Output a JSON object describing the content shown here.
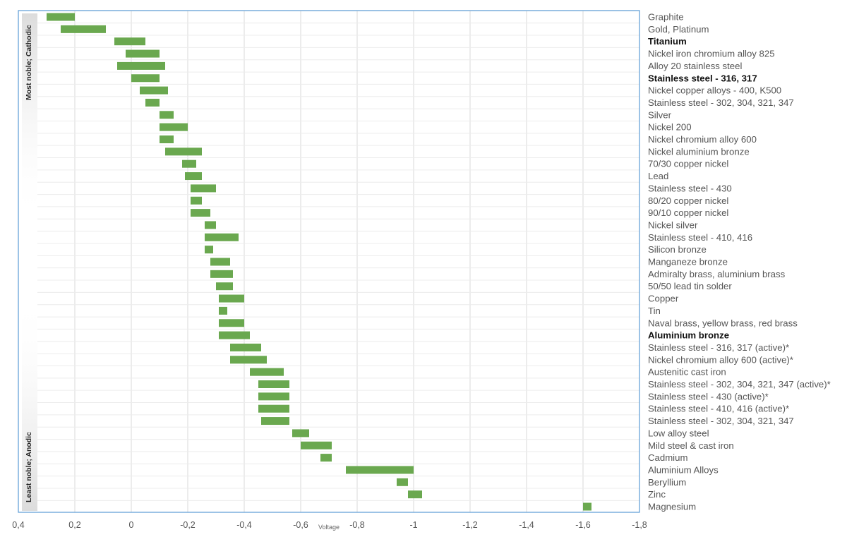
{
  "chart_data": {
    "type": "bar",
    "orientation": "horizontal-range",
    "xlabel": "Voltage",
    "xlim": [
      0.4,
      -1.8
    ],
    "x_ticks": [
      "0,4",
      "0,2",
      "0",
      "-0,2",
      "-0,4",
      "-0,6",
      "-0,8",
      "-1",
      "-1,2",
      "-1,4",
      "-1,6",
      "-1,8"
    ],
    "grid": true,
    "bar_color": "#6aa84f",
    "frame_color": "#5b9bd5",
    "side_labels": {
      "top": "Most noble; Cathodic",
      "bottom": "Least noble; Anodic"
    },
    "series": [
      {
        "label": "Graphite",
        "bold": false,
        "range": [
          0.3,
          0.2
        ]
      },
      {
        "label": "Gold, Platinum",
        "bold": false,
        "range": [
          0.25,
          0.09
        ]
      },
      {
        "label": "Titanium",
        "bold": true,
        "range": [
          0.06,
          -0.05
        ]
      },
      {
        "label": "Nickel iron chromium alloy 825",
        "bold": false,
        "range": [
          0.02,
          -0.1
        ]
      },
      {
        "label": "Alloy 20 stainless steel",
        "bold": false,
        "range": [
          0.05,
          -0.12
        ]
      },
      {
        "label": "Stainless steel - 316, 317",
        "bold": true,
        "range": [
          0.0,
          -0.1
        ]
      },
      {
        "label": "Nickel copper alloys - 400, K500",
        "bold": false,
        "range": [
          -0.03,
          -0.13
        ]
      },
      {
        "label": "Stainless steel - 302, 304, 321, 347",
        "bold": false,
        "range": [
          -0.05,
          -0.1
        ]
      },
      {
        "label": "Silver",
        "bold": false,
        "range": [
          -0.1,
          -0.15
        ]
      },
      {
        "label": "Nickel 200",
        "bold": false,
        "range": [
          -0.1,
          -0.2
        ]
      },
      {
        "label": "Nickel chromium alloy 600",
        "bold": false,
        "range": [
          -0.1,
          -0.15
        ]
      },
      {
        "label": "Nickel aluminium bronze",
        "bold": false,
        "range": [
          -0.12,
          -0.25
        ]
      },
      {
        "label": "70/30 copper nickel",
        "bold": false,
        "range": [
          -0.18,
          -0.23
        ]
      },
      {
        "label": "Lead",
        "bold": false,
        "range": [
          -0.19,
          -0.25
        ]
      },
      {
        "label": "Stainless steel - 430",
        "bold": false,
        "range": [
          -0.21,
          -0.3
        ]
      },
      {
        "label": "80/20 copper nickel",
        "bold": false,
        "range": [
          -0.21,
          -0.25
        ]
      },
      {
        "label": "90/10 copper nickel",
        "bold": false,
        "range": [
          -0.21,
          -0.28
        ]
      },
      {
        "label": "Nickel silver",
        "bold": false,
        "range": [
          -0.26,
          -0.3
        ]
      },
      {
        "label": "Stainless steel - 410, 416",
        "bold": false,
        "range": [
          -0.26,
          -0.38
        ]
      },
      {
        "label": "Silicon bronze",
        "bold": false,
        "range": [
          -0.26,
          -0.29
        ]
      },
      {
        "label": "Manganeze bronze",
        "bold": false,
        "range": [
          -0.28,
          -0.35
        ]
      },
      {
        "label": "Admiralty brass, aluminium brass",
        "bold": false,
        "range": [
          -0.28,
          -0.36
        ]
      },
      {
        "label": "50/50 lead tin solder",
        "bold": false,
        "range": [
          -0.3,
          -0.36
        ]
      },
      {
        "label": "Copper",
        "bold": false,
        "range": [
          -0.31,
          -0.4
        ]
      },
      {
        "label": "Tin",
        "bold": false,
        "range": [
          -0.31,
          -0.34
        ]
      },
      {
        "label": "Naval brass, yellow brass, red brass",
        "bold": false,
        "range": [
          -0.31,
          -0.4
        ]
      },
      {
        "label": "Aluminium bronze",
        "bold": true,
        "range": [
          -0.31,
          -0.42
        ]
      },
      {
        "label": "Stainless steel - 316, 317 (active)*",
        "bold": false,
        "range": [
          -0.35,
          -0.46
        ]
      },
      {
        "label": "Nickel chromium alloy 600 (active)*",
        "bold": false,
        "range": [
          -0.35,
          -0.48
        ]
      },
      {
        "label": "Austenitic cast iron",
        "bold": false,
        "range": [
          -0.42,
          -0.54
        ]
      },
      {
        "label": "Stainless steel - 302, 304, 321, 347 (active)*",
        "bold": false,
        "range": [
          -0.45,
          -0.56
        ]
      },
      {
        "label": "Stainless steel - 430 (active)*",
        "bold": false,
        "range": [
          -0.45,
          -0.56
        ]
      },
      {
        "label": "Stainless steel - 410, 416 (active)*",
        "bold": false,
        "range": [
          -0.45,
          -0.56
        ]
      },
      {
        "label": "Stainless steel - 302, 304, 321, 347",
        "bold": false,
        "range": [
          -0.46,
          -0.56
        ]
      },
      {
        "label": "Low alloy steel",
        "bold": false,
        "range": [
          -0.57,
          -0.63
        ]
      },
      {
        "label": "Mild steel & cast iron",
        "bold": false,
        "range": [
          -0.6,
          -0.71
        ]
      },
      {
        "label": "Cadmium",
        "bold": false,
        "range": [
          -0.67,
          -0.71
        ]
      },
      {
        "label": "Aluminium Alloys",
        "bold": false,
        "range": [
          -0.76,
          -1.0
        ]
      },
      {
        "label": "Beryllium",
        "bold": false,
        "range": [
          -0.94,
          -0.98
        ]
      },
      {
        "label": "Zinc",
        "bold": false,
        "range": [
          -0.98,
          -1.03
        ]
      },
      {
        "label": "Magnesium",
        "bold": false,
        "range": [
          -1.6,
          -1.63
        ]
      }
    ]
  }
}
